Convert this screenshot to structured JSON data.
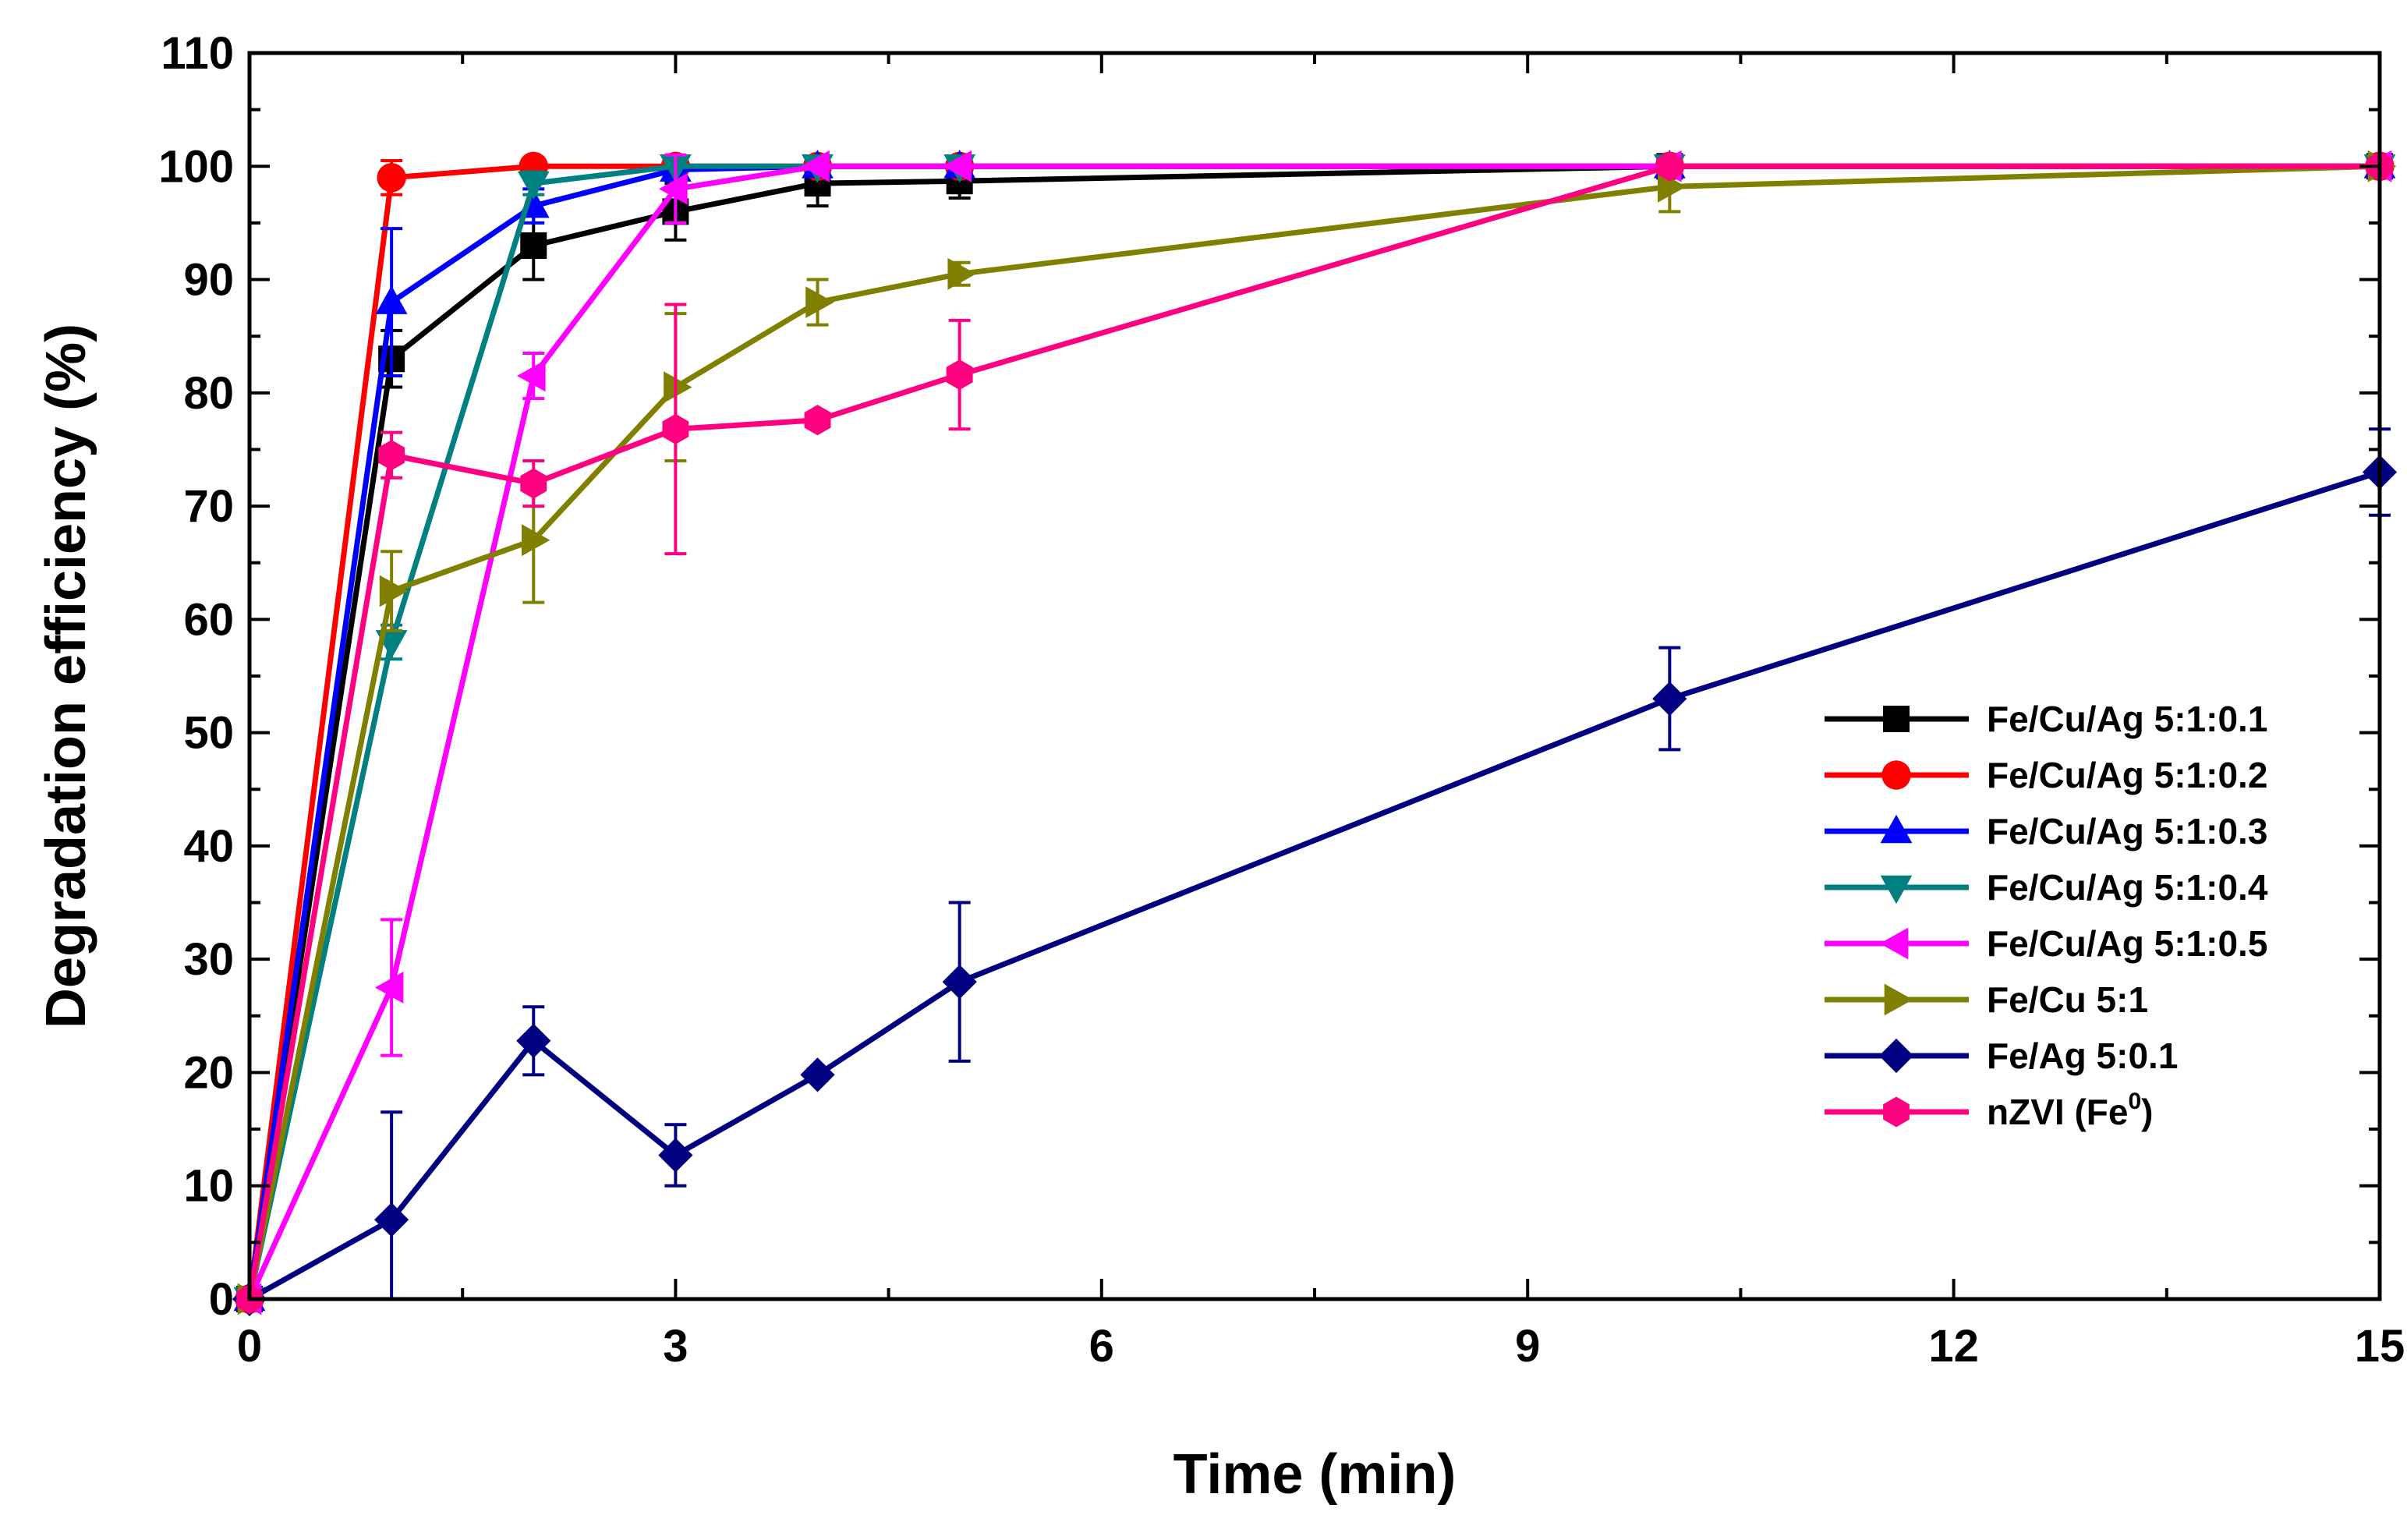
{
  "chart_data": {
    "type": "line",
    "title": "",
    "xlabel": "Time (min)",
    "ylabel": "Degradation efficiency (%)",
    "xlim": [
      0,
      15
    ],
    "ylim": [
      0,
      110
    ],
    "xticks": [
      0,
      3,
      6,
      9,
      12,
      15
    ],
    "xtick_labels": [
      "0",
      "3",
      "6",
      "9",
      "12",
      "15"
    ],
    "yticks": [
      0,
      10,
      20,
      30,
      40,
      50,
      60,
      70,
      80,
      90,
      100,
      110
    ],
    "ytick_labels": [
      "0",
      "10",
      "20",
      "30",
      "40",
      "50",
      "60",
      "70",
      "80",
      "90",
      "100",
      "110"
    ],
    "grid": false,
    "legend_position": "right",
    "series": [
      {
        "name": "Fe/Cu/Ag 5:1:0.1",
        "label": "Fe/Cu/Ag 5:1:0.1",
        "color": "#000000",
        "marker": "square",
        "x": [
          0,
          1,
          2,
          3,
          4,
          5,
          10,
          15
        ],
        "y": [
          0,
          83,
          93,
          96,
          98.5,
          98.7,
          100,
          100
        ],
        "err": [
          0,
          2.5,
          3,
          2.5,
          2,
          1.5,
          0,
          0
        ]
      },
      {
        "name": "Fe/Cu/Ag 5:1:0.2",
        "label": "Fe/Cu/Ag 5:1:0.2",
        "color": "#ff0000",
        "marker": "circle",
        "x": [
          0,
          1,
          2,
          3,
          4,
          5,
          10,
          15
        ],
        "y": [
          0,
          99,
          100,
          100,
          100,
          100,
          100,
          100
        ],
        "err": [
          0,
          1.5,
          0.5,
          0,
          0,
          0,
          0,
          0
        ]
      },
      {
        "name": "Fe/Cu/Ag 5:1:0.3",
        "label": "Fe/Cu/Ag 5:1:0.3",
        "color": "#0000ff",
        "marker": "triangle-up",
        "x": [
          0,
          1,
          2,
          3,
          4,
          5,
          10,
          15
        ],
        "y": [
          0,
          88,
          96.5,
          99.7,
          100,
          100,
          100,
          100
        ],
        "err": [
          0,
          6.5,
          1.5,
          1,
          0,
          0,
          0,
          0
        ]
      },
      {
        "name": "Fe/Cu/Ag 5:1:0.4",
        "label": "Fe/Cu/Ag 5:1:0.4",
        "color": "#008080",
        "marker": "triangle-down",
        "x": [
          0,
          1,
          2,
          3,
          4,
          5,
          10,
          15
        ],
        "y": [
          0,
          58,
          98.5,
          100,
          100,
          100,
          100,
          100
        ],
        "err": [
          0,
          1.5,
          1,
          0,
          0,
          0,
          0,
          0
        ]
      },
      {
        "name": "Fe/Cu/Ag 5:1:0.5",
        "label": "Fe/Cu/Ag 5:1:0.5",
        "color": "#ff00ff",
        "marker": "triangle-left",
        "x": [
          0,
          1,
          2,
          3,
          4,
          5,
          10,
          15
        ],
        "y": [
          0,
          27.5,
          81.5,
          98,
          100,
          100,
          100,
          100
        ],
        "err": [
          0,
          6,
          2,
          3,
          0,
          0,
          0,
          0
        ]
      },
      {
        "name": "Fe/Cu 5:1",
        "label": "Fe/Cu 5:1",
        "color": "#808000",
        "marker": "triangle-right",
        "x": [
          0,
          1,
          2,
          3,
          4,
          5,
          10,
          15
        ],
        "y": [
          0,
          62.5,
          67,
          80.5,
          88,
          90.5,
          98.2,
          100
        ],
        "err": [
          0,
          3.5,
          5.5,
          6.5,
          2,
          1,
          2.2,
          0
        ]
      },
      {
        "name": "Fe/Ag 5:0.1",
        "label": "Fe/Ag 5:0.1",
        "color": "#000080",
        "marker": "diamond",
        "x": [
          0,
          1,
          2,
          3,
          4,
          5,
          10,
          15
        ],
        "y": [
          0,
          7,
          22.8,
          12.7,
          19.8,
          28,
          53,
          73
        ],
        "err": [
          0,
          9.5,
          3,
          2.7,
          0.5,
          7,
          4.5,
          3.8
        ]
      },
      {
        "name": "nZVI (Fe0)",
        "label": "nZVI (Fe",
        "label_sup": "0",
        "label_end": ")",
        "color": "#ff0080",
        "marker": "hexagon",
        "x": [
          0,
          1,
          2,
          3,
          4,
          5,
          10,
          15
        ],
        "y": [
          0,
          74.5,
          72,
          76.8,
          77.6,
          81.6,
          100,
          100
        ],
        "err": [
          0,
          2,
          2,
          11,
          0.5,
          4.8,
          0,
          0
        ]
      }
    ]
  }
}
